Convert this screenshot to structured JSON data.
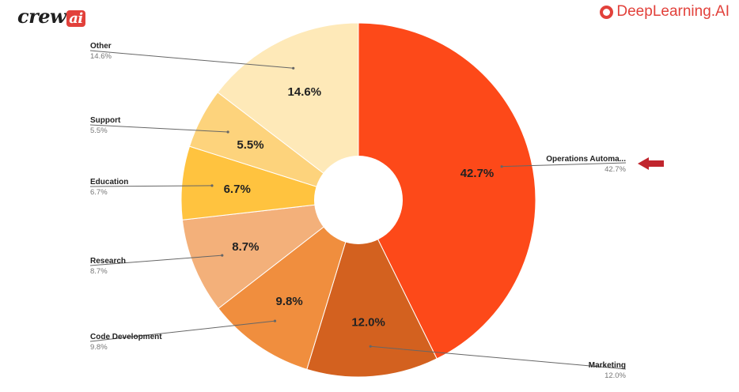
{
  "header": {
    "crew_logo_text": "crew",
    "crew_logo_ai": "ai",
    "dlai_logo_text": "DeepLearning.AI"
  },
  "colors": {
    "brand_red": "#e2413b",
    "arrow": "#c0252d"
  },
  "chart_data": {
    "type": "pie",
    "donut": true,
    "start": "12 o'clock",
    "direction": "clockwise",
    "slices": [
      {
        "label": "Operations Automa...",
        "value": 42.7,
        "pct_label": "42.7%",
        "color": "#fd4919",
        "label_side": "right"
      },
      {
        "label": "Marketing",
        "value": 12.0,
        "pct_label": "12.0%",
        "color": "#d3611f",
        "label_side": "right"
      },
      {
        "label": "Code Development",
        "value": 9.8,
        "pct_label": "9.8%",
        "color": "#f08e3e",
        "label_side": "left"
      },
      {
        "label": "Research",
        "value": 8.7,
        "pct_label": "8.7%",
        "color": "#f3b07a",
        "label_side": "left"
      },
      {
        "label": "Education",
        "value": 6.7,
        "pct_label": "6.7%",
        "color": "#ffc33f",
        "label_side": "left"
      },
      {
        "label": "Support",
        "value": 5.5,
        "pct_label": "5.5%",
        "color": "#fdd37c",
        "label_side": "left"
      },
      {
        "label": "Other",
        "value": 14.6,
        "pct_label": "14.6%",
        "color": "#fee9b8",
        "label_side": "left"
      }
    ],
    "highlighted_slice": "Operations Automa..."
  }
}
